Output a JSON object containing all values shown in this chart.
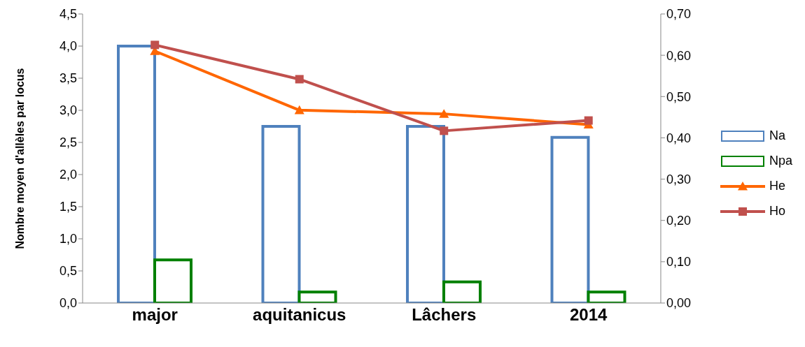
{
  "chart_data": {
    "type": "bar",
    "ylabel": "Nombre moyen d'allèles par locus",
    "categories": [
      "major",
      "aquitanicus",
      "Lâchers",
      "2014"
    ],
    "series": [
      {
        "name": "Na",
        "color": "#4f81bd",
        "values": [
          4.0,
          2.75,
          2.75,
          2.58
        ]
      },
      {
        "name": "Npa",
        "color": "#008000",
        "values": [
          0.67,
          0.17,
          0.33,
          0.17
        ]
      },
      {
        "name": "He",
        "type": "line",
        "axis": "y2",
        "marker": "triangle",
        "color": "#ff6600",
        "values": [
          0.61,
          0.467,
          0.458,
          0.432
        ]
      },
      {
        "name": "Ho",
        "type": "line",
        "axis": "y2",
        "marker": "square",
        "color": "#c0504d",
        "values": [
          0.625,
          0.542,
          0.417,
          0.442
        ]
      }
    ],
    "ylim": [
      0,
      4.5
    ],
    "yticks": [
      {
        "value": 0,
        "label": "0,0"
      },
      {
        "value": 0.5,
        "label": "0,5"
      },
      {
        "value": 1,
        "label": "1,0"
      },
      {
        "value": 1.5,
        "label": "1,5"
      },
      {
        "value": 2,
        "label": "2,0"
      },
      {
        "value": 2.5,
        "label": "2,5"
      },
      {
        "value": 3,
        "label": "3,0"
      },
      {
        "value": 3.5,
        "label": "3,5"
      },
      {
        "value": 4,
        "label": "4,0"
      },
      {
        "value": 4.5,
        "label": "4,5"
      }
    ],
    "y2lim": [
      0,
      0.7
    ],
    "y2ticks": [
      {
        "value": 0,
        "label": "0,00"
      },
      {
        "value": 0.1,
        "label": "0,10"
      },
      {
        "value": 0.2,
        "label": "0,20"
      },
      {
        "value": 0.3,
        "label": "0,30"
      },
      {
        "value": 0.4,
        "label": "0,40"
      },
      {
        "value": 0.5,
        "label": "0,50"
      },
      {
        "value": 0.6,
        "label": "0,60"
      },
      {
        "value": 0.7,
        "label": "0,70"
      }
    ],
    "grid": false,
    "legend": "right"
  }
}
